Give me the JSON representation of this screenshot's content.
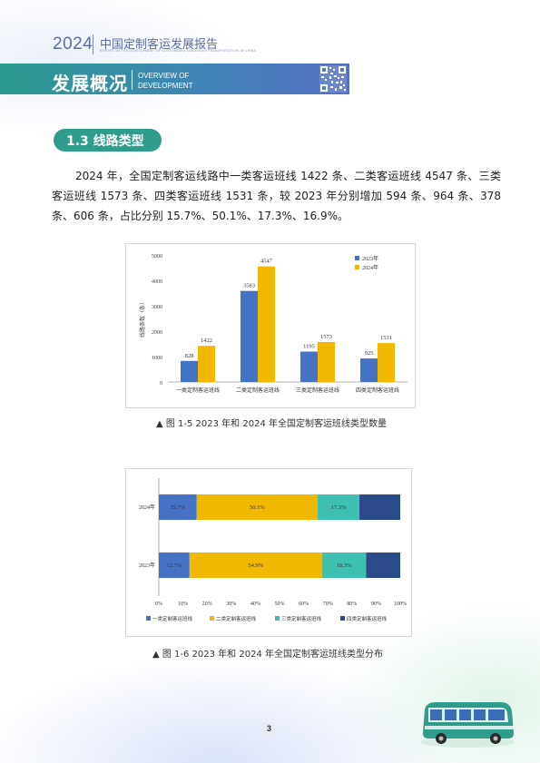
{
  "header": {
    "year": "2024",
    "title": "中国定制客运发展报告",
    "subtitle": "REPORT ON THE DEVELOPMENT OF CUSTOMIZED PASSENGER TRANSPORTATION IN CHINA"
  },
  "banner": {
    "title": "发展概况",
    "en_line1": "OVERVIEW OF",
    "en_line2": "DEVELOPMENT"
  },
  "section": {
    "title": "1.3  线路类型"
  },
  "paragraph": "2024 年，全国定制客运线路中一类客运班线 1422 条、二类客运班线 4547 条、三类客运班线 1573 条、四类客运班线 1531 条，较 2023 年分别增加 594 条、964 条、378 条、606 条，占比分别 15.7%、50.1%、17.3%、16.9%。",
  "figure1": {
    "caption": "▲ 图 1-5  2023 年和 2024 年全国定制客运班线类型数量"
  },
  "figure2": {
    "caption": "▲ 图 1-6  2023 年和 2024 年全国定制客运班线类型分布"
  },
  "page_number": "3",
  "colors": {
    "blue": "#4472c4",
    "gold": "#f0b800",
    "teal": "#3ebfb0",
    "navy": "#2b4a8a",
    "banner_teal": "#2c9a8d",
    "pill": "#2f9c8c"
  },
  "chart_data": [
    {
      "type": "bar",
      "title": "",
      "xlabel": "",
      "ylabel": "线路条数（条）",
      "categories": [
        "一类定制客运班线",
        "二类定制客运班线",
        "三类定制客运班线",
        "四类定制客运班线"
      ],
      "series": [
        {
          "name": "2023年",
          "color": "#4472c4",
          "values": [
            828,
            3583,
            1195,
            925
          ]
        },
        {
          "name": "2024年",
          "color": "#f0b800",
          "values": [
            1422,
            4547,
            1573,
            1531
          ]
        }
      ],
      "ylim": [
        0,
        5000
      ],
      "yticks": [
        "0",
        "1000",
        "2000",
        "3000",
        "4000",
        "5000"
      ],
      "grid": false,
      "legend": "top-right"
    },
    {
      "type": "bar",
      "orientation": "horizontal",
      "stacked": "percent",
      "title": "",
      "categories": [
        "2024年",
        "2023年"
      ],
      "series": [
        {
          "name": "一类定制客运班线",
          "color": "#4472c4",
          "values": [
            15.7,
            12.7
          ],
          "labels": [
            "15.7%",
            "12.7%"
          ]
        },
        {
          "name": "二类定制客运班线",
          "color": "#f0b800",
          "values": [
            50.1,
            54.9
          ],
          "labels": [
            "50.1%",
            "54.9%"
          ]
        },
        {
          "name": "三类定制客运班线",
          "color": "#3ebfb0",
          "values": [
            17.3,
            18.3
          ],
          "labels": [
            "17.3%",
            "18.3%"
          ]
        },
        {
          "name": "四类定制客运班线",
          "color": "#2b4a8a",
          "values": [
            16.9,
            14.1
          ],
          "labels": [
            "",
            ""
          ]
        }
      ],
      "xticks": [
        "0%",
        "10%",
        "20%",
        "30%",
        "40%",
        "50%",
        "60%",
        "70%",
        "80%",
        "90%",
        "100%"
      ],
      "xlim": [
        0,
        100
      ],
      "grid": false,
      "legend": "bottom"
    }
  ]
}
